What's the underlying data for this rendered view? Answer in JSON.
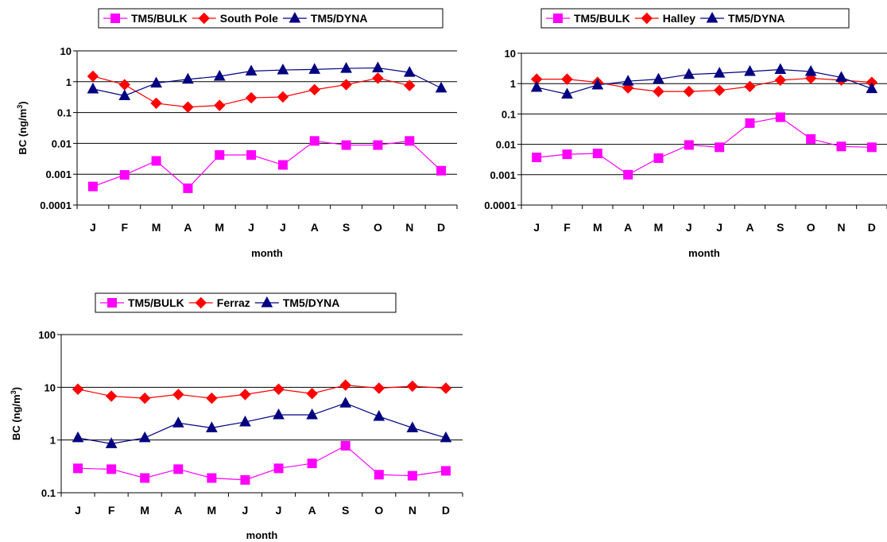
{
  "chart_data": [
    {
      "type": "line",
      "xlabel": "month",
      "ylabel": "BC (ng/m3)",
      "ylabel_parts": [
        "BC (ng/m",
        "3",
        ")"
      ],
      "categories": [
        "J",
        "F",
        "M",
        "A",
        "M",
        "J",
        "J",
        "A",
        "S",
        "O",
        "N",
        "D"
      ],
      "yscale": "log",
      "ylim": [
        0.0001,
        10
      ],
      "yticks": [
        0.0001,
        0.001,
        0.01,
        0.1,
        1,
        10
      ],
      "ytick_labels": [
        "0.0001",
        "0.001",
        "0.01",
        "0.1",
        "1",
        "10"
      ],
      "grid": "horizontal",
      "legend_position": "top",
      "series": [
        {
          "name": "TM5/BULK",
          "color": "#ff00ff",
          "marker": "square",
          "values": [
            0.0004,
            0.00095,
            0.0027,
            0.00035,
            0.0042,
            0.0042,
            0.002,
            0.012,
            0.0088,
            0.0088,
            0.012,
            0.0013
          ]
        },
        {
          "name": "South Pole",
          "color": "#ff0000",
          "marker": "diamond",
          "values": [
            1.5,
            0.8,
            0.2,
            0.15,
            0.17,
            0.3,
            0.32,
            0.55,
            0.8,
            1.3,
            0.75,
            null
          ]
        },
        {
          "name": "TM5/DYNA",
          "color": "#000080",
          "marker": "triangle",
          "values": [
            0.58,
            0.35,
            0.9,
            1.2,
            1.5,
            2.2,
            2.4,
            2.5,
            2.7,
            2.8,
            2.0,
            0.62
          ]
        }
      ]
    },
    {
      "type": "line",
      "xlabel": "month",
      "ylabel": "",
      "categories": [
        "J",
        "F",
        "M",
        "A",
        "M",
        "J",
        "J",
        "A",
        "S",
        "O",
        "N",
        "D"
      ],
      "yscale": "log",
      "ylim": [
        0.0001,
        10
      ],
      "yticks": [
        0.0001,
        0.001,
        0.01,
        0.1,
        1,
        10
      ],
      "ytick_labels": [
        "0.0001",
        "0.001",
        "0.01",
        "0.1",
        "1",
        "10"
      ],
      "grid": "horizontal",
      "legend_position": "top",
      "series": [
        {
          "name": "TM5/BULK",
          "color": "#ff00ff",
          "marker": "square",
          "values": [
            0.0037,
            0.0047,
            0.005,
            0.001,
            0.0035,
            0.0095,
            0.008,
            0.05,
            0.078,
            0.015,
            0.0085,
            0.008
          ]
        },
        {
          "name": "Halley",
          "color": "#ff0000",
          "marker": "diamond",
          "values": [
            1.4,
            1.4,
            1.1,
            0.72,
            0.55,
            0.55,
            0.6,
            0.8,
            1.3,
            1.5,
            1.3,
            1.1
          ]
        },
        {
          "name": "TM5/DYNA",
          "color": "#000080",
          "marker": "triangle",
          "values": [
            0.75,
            0.45,
            0.9,
            1.2,
            1.4,
            2.0,
            2.2,
            2.5,
            2.9,
            2.5,
            1.6,
            0.68
          ]
        }
      ]
    },
    {
      "type": "line",
      "xlabel": "month",
      "ylabel": "BC (ng/m3)",
      "ylabel_parts": [
        "BC (ng/m",
        "3",
        ")"
      ],
      "categories": [
        "J",
        "F",
        "M",
        "A",
        "M",
        "J",
        "J",
        "A",
        "S",
        "O",
        "N",
        "D"
      ],
      "yscale": "log",
      "ylim": [
        0.1,
        100
      ],
      "yticks": [
        0.1,
        1,
        10,
        100
      ],
      "ytick_labels": [
        "0.1",
        "1",
        "10",
        "100"
      ],
      "grid": "horizontal",
      "legend_position": "top",
      "series": [
        {
          "name": "TM5/BULK",
          "color": "#ff00ff",
          "marker": "square",
          "values": [
            0.29,
            0.28,
            0.19,
            0.28,
            0.19,
            0.175,
            0.29,
            0.36,
            0.78,
            0.22,
            0.21,
            0.26
          ]
        },
        {
          "name": "Ferraz",
          "color": "#ff0000",
          "marker": "diamond",
          "values": [
            9.2,
            6.8,
            6.2,
            7.3,
            6.2,
            7.3,
            9.2,
            7.6,
            11.0,
            9.6,
            10.5,
            9.6
          ]
        },
        {
          "name": "TM5/DYNA",
          "color": "#000080",
          "marker": "triangle",
          "values": [
            1.1,
            0.85,
            1.1,
            2.1,
            1.7,
            2.2,
            3.0,
            3.0,
            5.0,
            2.8,
            1.7,
            1.1
          ]
        }
      ]
    }
  ]
}
